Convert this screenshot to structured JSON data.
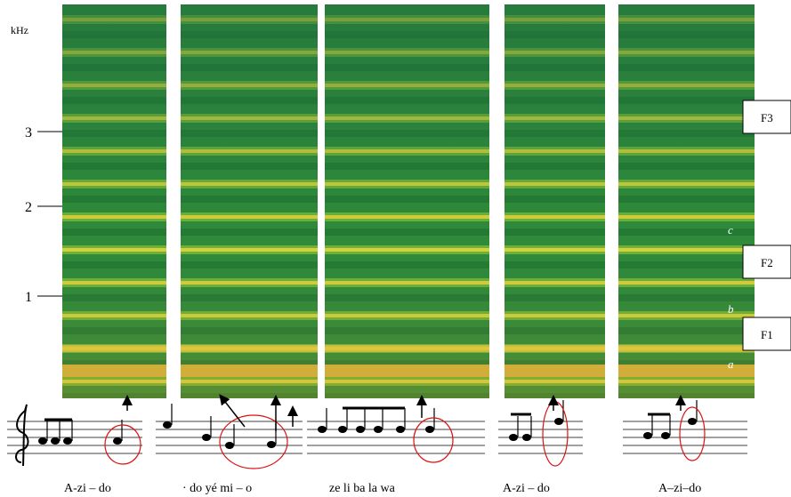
{
  "axis": {
    "unit": "kHz",
    "ticks": [
      "3",
      "2",
      "1"
    ]
  },
  "formants": [
    "F3",
    "F2",
    "F1"
  ],
  "harmonic_labels": [
    "c",
    "b",
    "a"
  ],
  "lyrics": [
    "A-zi – do",
    "· do yé mi – o",
    "ze li ba la wa",
    "A-zi – do",
    "A–zi–do"
  ]
}
